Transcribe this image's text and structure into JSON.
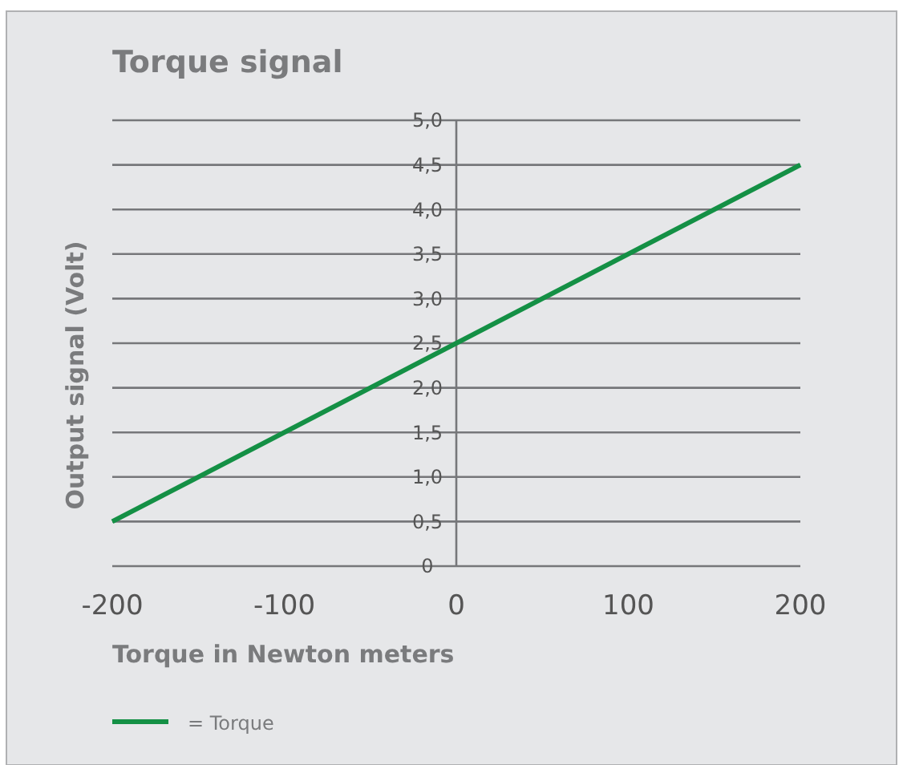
{
  "chart_data": {
    "type": "line",
    "title": "Torque signal",
    "xlabel": "Torque in Newton meters",
    "ylabel": "Output signal (Volt)",
    "x": [
      -200,
      200
    ],
    "series": [
      {
        "name": "= Torque",
        "color": "#149045",
        "values": [
          0.5,
          4.5
        ]
      }
    ],
    "xlim": [
      -200,
      200
    ],
    "xticks": [
      -200,
      -100,
      0,
      100,
      200
    ],
    "ylim": [
      0,
      5
    ],
    "yticks": [
      0,
      {
        "value": 0.5,
        "label": "0,5"
      },
      {
        "value": 1,
        "label": "1,0"
      },
      {
        "value": 1.5,
        "label": "1,5"
      },
      {
        "value": 2,
        "label": "2,0"
      },
      {
        "value": 2.5,
        "label": "2,5"
      },
      {
        "value": 3,
        "label": "3,0"
      },
      {
        "value": 3.5,
        "label": "3,5"
      },
      {
        "value": 4,
        "label": "4,0"
      },
      {
        "value": 4.5,
        "label": "4,5"
      },
      {
        "value": 5,
        "label": "5,0"
      }
    ],
    "grid": "y",
    "legend": "bottom left",
    "marker": "none",
    "line_style": "solid"
  }
}
